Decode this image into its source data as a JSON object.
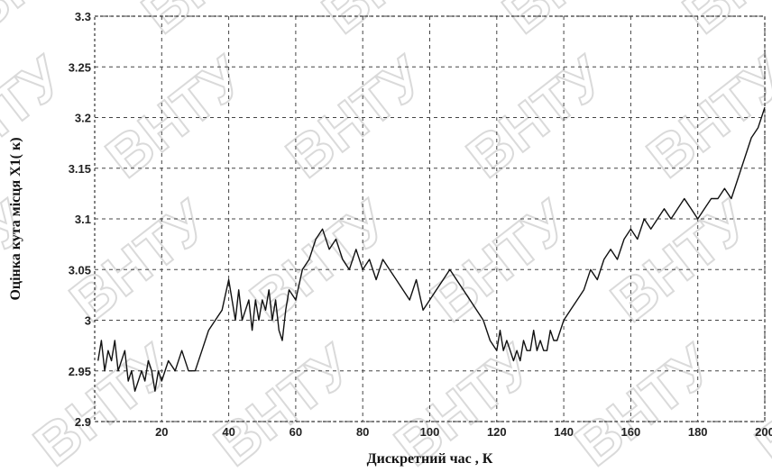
{
  "watermark": "ВНТУ",
  "chart_data": {
    "type": "line",
    "title": "",
    "xlabel": "Дискретний    час , К",
    "ylabel": "Оцінка кута місця Х1( к)",
    "xlim": [
      0,
      200
    ],
    "ylim": [
      2.9,
      3.3
    ],
    "grid": true,
    "xticks": [
      "20",
      "40",
      "60",
      "80",
      "100",
      "120",
      "140",
      "160",
      "180",
      "200"
    ],
    "yticks": [
      "2.9",
      "2.95",
      "3",
      "3.05",
      "3.1",
      "3.15",
      "3.2",
      "3.25",
      "3.3"
    ],
    "series": [
      {
        "x": [
          1,
          2,
          3,
          4,
          5,
          6,
          7,
          8,
          9,
          10,
          11,
          12,
          13,
          14,
          15,
          16,
          17,
          18,
          19,
          20,
          22,
          24,
          26,
          28,
          30,
          32,
          34,
          36,
          38,
          40,
          41,
          42,
          43,
          44,
          45,
          46,
          47,
          48,
          49,
          50,
          51,
          52,
          53,
          54,
          55,
          56,
          57,
          58,
          60,
          62,
          64,
          66,
          68,
          70,
          72,
          74,
          76,
          78,
          80,
          82,
          84,
          86,
          88,
          90,
          92,
          94,
          96,
          98,
          100,
          102,
          104,
          106,
          108,
          110,
          112,
          114,
          116,
          118,
          120,
          121,
          122,
          123,
          124,
          125,
          126,
          127,
          128,
          129,
          130,
          131,
          132,
          133,
          134,
          135,
          136,
          137,
          138,
          139,
          140,
          142,
          144,
          146,
          148,
          150,
          152,
          154,
          156,
          158,
          160,
          162,
          164,
          166,
          168,
          170,
          172,
          174,
          176,
          178,
          180,
          182,
          184,
          186,
          188,
          190,
          192,
          194,
          196,
          198,
          200
        ],
        "values": [
          2.96,
          2.98,
          2.95,
          2.97,
          2.96,
          2.98,
          2.95,
          2.96,
          2.97,
          2.94,
          2.95,
          2.93,
          2.94,
          2.95,
          2.94,
          2.96,
          2.95,
          2.93,
          2.95,
          2.94,
          2.96,
          2.95,
          2.97,
          2.95,
          2.95,
          2.97,
          2.99,
          3.0,
          3.01,
          3.04,
          3.02,
          3.0,
          3.03,
          3.0,
          3.01,
          3.02,
          2.99,
          3.02,
          3.0,
          3.02,
          3.01,
          3.03,
          3.0,
          3.02,
          2.99,
          2.98,
          3.01,
          3.03,
          3.02,
          3.05,
          3.06,
          3.08,
          3.09,
          3.07,
          3.08,
          3.06,
          3.05,
          3.07,
          3.05,
          3.06,
          3.04,
          3.06,
          3.05,
          3.04,
          3.03,
          3.02,
          3.04,
          3.01,
          3.02,
          3.03,
          3.04,
          3.05,
          3.04,
          3.03,
          3.02,
          3.01,
          3.0,
          2.98,
          2.97,
          2.99,
          2.97,
          2.98,
          2.97,
          2.96,
          2.97,
          2.96,
          2.98,
          2.97,
          2.97,
          2.99,
          2.97,
          2.98,
          2.97,
          2.97,
          2.99,
          2.98,
          2.98,
          2.99,
          3.0,
          3.01,
          3.02,
          3.03,
          3.05,
          3.04,
          3.06,
          3.07,
          3.06,
          3.08,
          3.09,
          3.08,
          3.1,
          3.09,
          3.1,
          3.11,
          3.1,
          3.11,
          3.12,
          3.11,
          3.1,
          3.11,
          3.12,
          3.12,
          3.13,
          3.12,
          3.14,
          3.16,
          3.18,
          3.19,
          3.21
        ]
      }
    ]
  }
}
